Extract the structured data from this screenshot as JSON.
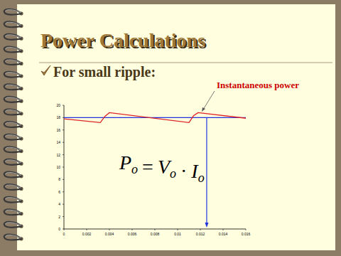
{
  "slide": {
    "title": "Power Calculations",
    "bullet": "For small ripple:"
  },
  "chart_data": {
    "type": "line",
    "x": [
      0,
      0.0032,
      0.0036,
      0.004,
      0.011,
      0.0114,
      0.0118,
      0.016
    ],
    "series": [
      {
        "color": "#dd2222",
        "values": [
          17.8,
          17.2,
          18.2,
          18.8,
          17.2,
          18.3,
          18.8,
          17.9
        ]
      },
      {
        "color": "#2233dd",
        "values": [
          18,
          18,
          18,
          18,
          18,
          18,
          18,
          18
        ]
      }
    ],
    "xlim": [
      0,
      0.016
    ],
    "xticks": [
      0,
      0.002,
      0.004,
      0.006,
      0.008,
      0.01,
      0.012,
      0.014,
      0.016
    ],
    "ylim": [
      0,
      20
    ],
    "yticks": [
      0,
      2,
      4,
      6,
      8,
      10,
      12,
      14,
      16,
      18,
      20
    ],
    "grid": false,
    "annotations": [
      {
        "text": "Instantaneous power",
        "color": "#cc0000"
      },
      {
        "formula": [
          [
            "P",
            "o"
          ],
          [
            "="
          ],
          [
            "V",
            "o"
          ],
          [
            "·"
          ],
          [
            "I",
            "o"
          ]
        ]
      }
    ]
  }
}
